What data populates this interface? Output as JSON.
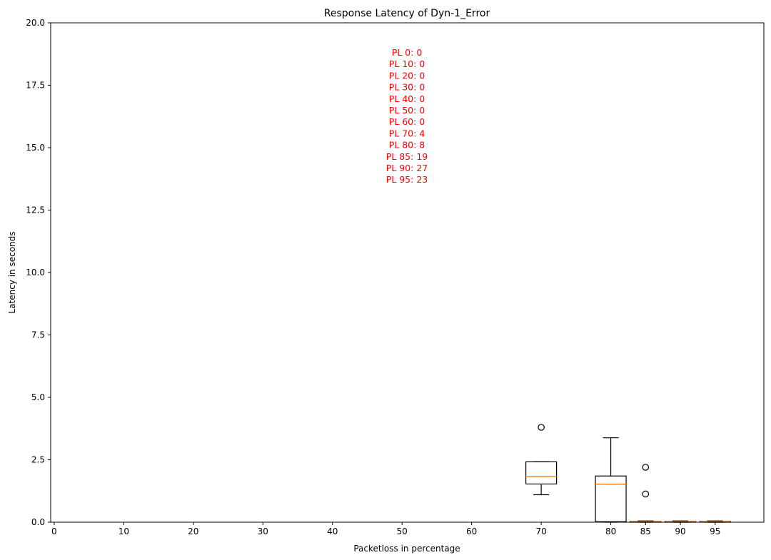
{
  "chart_data": {
    "type": "boxplot",
    "title": "Response Latency of Dyn-1_Error",
    "xlabel": "Packetloss in percentage",
    "ylabel": "Latency in seconds",
    "xlim": [
      -0.5,
      102
    ],
    "ylim": [
      0,
      20
    ],
    "x_ticks": [
      0,
      10,
      20,
      30,
      40,
      50,
      60,
      70,
      80,
      85,
      90,
      95
    ],
    "y_ticks": [
      0.0,
      2.5,
      5.0,
      7.5,
      10.0,
      12.5,
      15.0,
      17.5,
      20.0
    ],
    "y_tick_labels": [
      "0.0",
      "2.5",
      "5.0",
      "7.5",
      "10.0",
      "12.5",
      "15.0",
      "17.5",
      "20.0"
    ],
    "grid": false,
    "box_color": "#000000",
    "median_color": "#ff7f0e",
    "annotation_color": "#ff0000",
    "boxes": [
      {
        "x": 70,
        "whislo": 1.1,
        "q1": 1.53,
        "med": 1.83,
        "q3": 2.42,
        "whishi": 2.42,
        "fliers": [
          3.8
        ]
      },
      {
        "x": 80,
        "whislo": 0.0,
        "q1": 0.02,
        "med": 1.52,
        "q3": 1.85,
        "whishi": 3.38,
        "fliers": []
      },
      {
        "x": 85,
        "whislo": 0.0,
        "q1": 0.0,
        "med": 0.02,
        "q3": 0.03,
        "whishi": 0.05,
        "fliers": [
          2.2,
          1.13
        ]
      },
      {
        "x": 90,
        "whislo": 0.0,
        "q1": 0.0,
        "med": 0.02,
        "q3": 0.03,
        "whishi": 0.05,
        "fliers": []
      },
      {
        "x": 95,
        "whislo": 0.0,
        "q1": 0.0,
        "med": 0.02,
        "q3": 0.03,
        "whishi": 0.05,
        "fliers": []
      }
    ],
    "annotations": [
      "PL 0: 0",
      "PL 10: 0",
      "PL 20: 0",
      "PL 30: 0",
      "PL 40: 0",
      "PL 50: 0",
      "PL 60: 0",
      "PL 70: 4",
      "PL 80: 8",
      "PL 85: 19",
      "PL 90: 27",
      "PL 95: 23"
    ]
  }
}
